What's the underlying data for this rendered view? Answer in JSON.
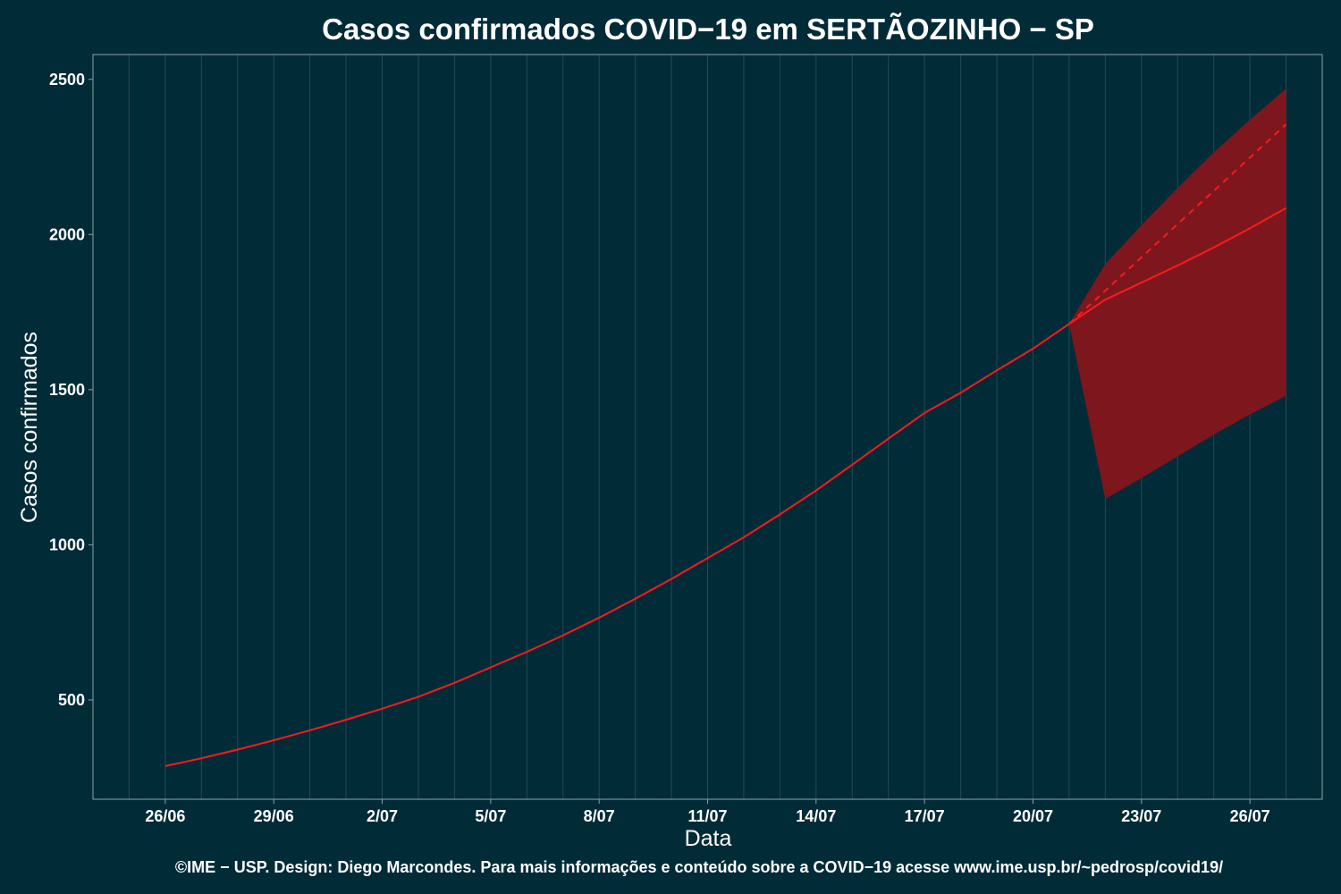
{
  "chart_data": {
    "type": "line",
    "title": "Casos confirmados COVID−19 em SERTÃOZINHO − SP",
    "xlabel": "Data",
    "ylabel": "Casos confirmados",
    "footer": "©IME − USP. Design: Diego Marcondes. Para mais informações e conteúdo sobre a COVID−19 acesse www.ime.usp.br/~pedrosp/covid19/",
    "x_ticks": [
      "26/06",
      "29/06",
      "2/07",
      "5/07",
      "8/07",
      "11/07",
      "14/07",
      "17/07",
      "20/07",
      "23/07",
      "26/07"
    ],
    "y_ticks": [
      500,
      1000,
      1500,
      2000,
      2500
    ],
    "xlim": [
      "2020-06-24",
      "2020-07-28"
    ],
    "ylim": [
      180,
      2580
    ],
    "grid": "vertical",
    "legend": "none",
    "colors": {
      "background": "#022b38",
      "line": "#ff1a1a",
      "band": "#7d171d",
      "grid": "#234a55",
      "axis": "#8aa3aa",
      "text": "#ffffff"
    },
    "series": [
      {
        "x": [
          "2020-06-26",
          "2020-06-27",
          "2020-06-28",
          "2020-06-29",
          "2020-06-30",
          "2020-07-01",
          "2020-07-02",
          "2020-07-03",
          "2020-07-04",
          "2020-07-05",
          "2020-07-06",
          "2020-07-07",
          "2020-07-08",
          "2020-07-09",
          "2020-07-10",
          "2020-07-11",
          "2020-07-12",
          "2020-07-13",
          "2020-07-14",
          "2020-07-15",
          "2020-07-16",
          "2020-07-17",
          "2020-07-18",
          "2020-07-19",
          "2020-07-20",
          "2020-07-21"
        ],
        "y": [
          287,
          312,
          340,
          370,
          402,
          436,
          472,
          510,
          555,
          605,
          655,
          708,
          765,
          826,
          890,
          957,
          1024,
          1098,
          1175,
          1258,
          1342,
          1425,
          1490,
          1562,
          1632,
          1712
        ]
      },
      {
        "style": "solid",
        "x": [
          "2020-07-21",
          "2020-07-22",
          "2020-07-23",
          "2020-07-24",
          "2020-07-25",
          "2020-07-26",
          "2020-07-27"
        ],
        "y": [
          1712,
          1790,
          1845,
          1900,
          1958,
          2020,
          2085
        ]
      },
      {
        "style": "dashed",
        "x": [
          "2020-07-21",
          "2020-07-27"
        ],
        "y": [
          1712,
          2355
        ]
      }
    ],
    "band": {
      "x": [
        "2020-07-21",
        "2020-07-22",
        "2020-07-23",
        "2020-07-24",
        "2020-07-25",
        "2020-07-26",
        "2020-07-27"
      ],
      "upper": [
        1712,
        1905,
        2030,
        2150,
        2265,
        2370,
        2470
      ],
      "lower": [
        1712,
        1148,
        1215,
        1285,
        1355,
        1420,
        1480
      ]
    }
  }
}
